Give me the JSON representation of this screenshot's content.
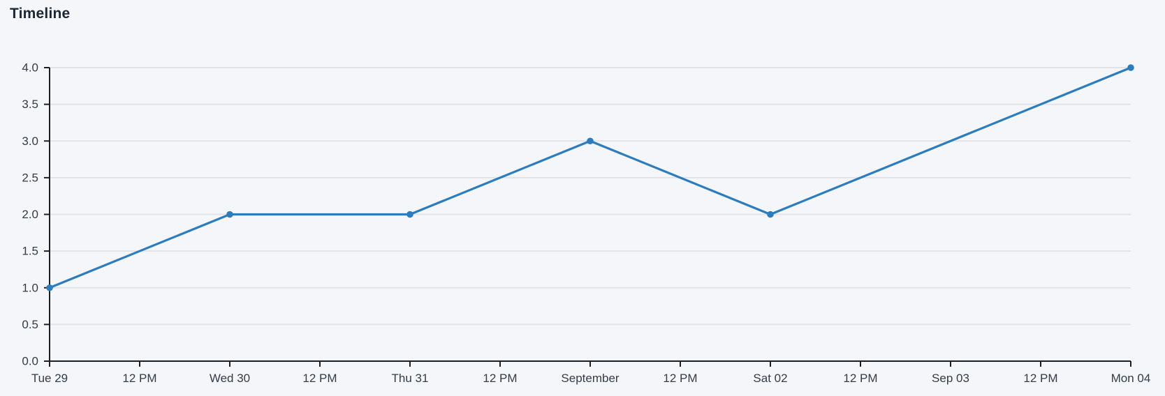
{
  "chart_data": {
    "type": "line",
    "title": "Timeline",
    "xlabel": "",
    "ylabel": "",
    "x_tick_labels": [
      "Tue 29",
      "12 PM",
      "Wed 30",
      "12 PM",
      "Thu 31",
      "12 PM",
      "September",
      "12 PM",
      "Sat 02",
      "12 PM",
      "Sep 03",
      "12 PM",
      "Mon 04"
    ],
    "y_tick_labels": [
      "0.0",
      "0.5",
      "1.0",
      "1.5",
      "2.0",
      "2.5",
      "3.0",
      "3.5",
      "4.0"
    ],
    "ylim": [
      0,
      4
    ],
    "grid": true,
    "legend_position": "none",
    "series": [
      {
        "name": "timeline",
        "marker": "circle",
        "color": "#2d7dbe",
        "points": [
          {
            "x_label": "Tue 29",
            "x_index": 0,
            "y": 1.0
          },
          {
            "x_label": "Wed 30",
            "x_index": 2,
            "y": 2.0
          },
          {
            "x_label": "Thu 31",
            "x_index": 4,
            "y": 2.0
          },
          {
            "x_label": "September",
            "x_index": 6,
            "y": 3.0
          },
          {
            "x_label": "Sat 02",
            "x_index": 8,
            "y": 2.0
          },
          {
            "x_label": "Mon 04",
            "x_index": 12,
            "y": 4.0
          }
        ]
      }
    ],
    "colors": {
      "line": "#2d7dbe",
      "marker": "#2d7dbe",
      "grid": "#e2e3e9",
      "axis": "#1a1f26",
      "tick_label": "#333c47",
      "title": "#1d2733",
      "background": "#f5f6fa"
    }
  }
}
